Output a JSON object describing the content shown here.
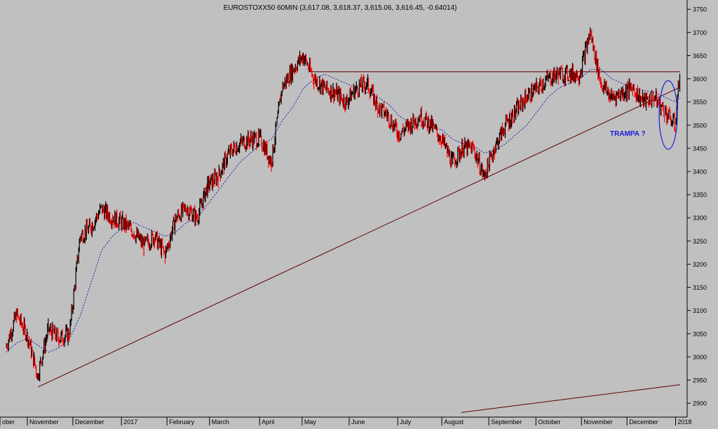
{
  "colors": {
    "background": "#c0c0c0",
    "up_bar": "#000000",
    "down_bar": "#ff0000",
    "moving_average": "#1a1aa6",
    "trendline": "#5a0000",
    "annotation": "#1b1be0"
  },
  "chart_data": {
    "type": "line",
    "title": "EUROSTOXX50 60MIN (3,617.08, 3,618.37, 3,615.06, 3,616.45, -0.64014)",
    "xlabel": "",
    "ylabel": "",
    "ylim": [
      2870,
      3770
    ],
    "grid": false,
    "y_axis_position": "right",
    "y_ticks": [
      2900,
      2950,
      3000,
      3050,
      3100,
      3150,
      3200,
      3250,
      3300,
      3350,
      3400,
      3450,
      3500,
      3550,
      3600,
      3650,
      3700,
      3750
    ],
    "x_tick_labels": [
      "ober",
      "November",
      "December",
      "2017",
      "February",
      "March",
      "April",
      "May",
      "June",
      "July",
      "August",
      "September",
      "October",
      "November",
      "December",
      "2018"
    ],
    "x": [
      "2016-10-18",
      "2016-10-25",
      "2016-11-01",
      "2016-11-08",
      "2016-11-15",
      "2016-11-22",
      "2016-11-29",
      "2016-12-06",
      "2016-12-13",
      "2016-12-20",
      "2016-12-27",
      "2017-01-03",
      "2017-01-10",
      "2017-01-17",
      "2017-01-24",
      "2017-01-31",
      "2017-02-07",
      "2017-02-14",
      "2017-02-21",
      "2017-02-28",
      "2017-03-07",
      "2017-03-14",
      "2017-03-21",
      "2017-03-28",
      "2017-04-04",
      "2017-04-11",
      "2017-04-18",
      "2017-04-25",
      "2017-05-02",
      "2017-05-09",
      "2017-05-16",
      "2017-05-23",
      "2017-05-30",
      "2017-06-06",
      "2017-06-13",
      "2017-06-20",
      "2017-06-27",
      "2017-07-04",
      "2017-07-11",
      "2017-07-18",
      "2017-07-25",
      "2017-08-01",
      "2017-08-08",
      "2017-08-15",
      "2017-08-22",
      "2017-08-29",
      "2017-09-05",
      "2017-09-12",
      "2017-09-19",
      "2017-09-26",
      "2017-10-03",
      "2017-10-10",
      "2017-10-17",
      "2017-10-24",
      "2017-10-31",
      "2017-11-07",
      "2017-11-14",
      "2017-11-21",
      "2017-11-28",
      "2017-12-05",
      "2017-12-12",
      "2017-12-19",
      "2017-12-26",
      "2018-01-02",
      "2018-01-05"
    ],
    "series": [
      {
        "values": [
          3020,
          3090,
          3050,
          2960,
          3060,
          3040,
          3050,
          3260,
          3280,
          3320,
          3300,
          3290,
          3270,
          3240,
          3260,
          3220,
          3300,
          3320,
          3300,
          3370,
          3390,
          3440,
          3460,
          3470,
          3470,
          3420,
          3580,
          3620,
          3650,
          3600,
          3580,
          3570,
          3550,
          3580,
          3590,
          3540,
          3520,
          3480,
          3500,
          3520,
          3500,
          3470,
          3420,
          3450,
          3450,
          3390,
          3450,
          3500,
          3530,
          3560,
          3580,
          3600,
          3610,
          3610,
          3610,
          3700,
          3590,
          3560,
          3570,
          3580,
          3550,
          3560,
          3530,
          3500,
          3616
        ]
      },
      {
        "values": [
          3010,
          3030,
          3040,
          3025,
          3010,
          3020,
          3040,
          3090,
          3160,
          3230,
          3260,
          3280,
          3290,
          3280,
          3270,
          3260,
          3270,
          3290,
          3300,
          3330,
          3360,
          3390,
          3420,
          3440,
          3460,
          3470,
          3510,
          3540,
          3580,
          3600,
          3610,
          3600,
          3590,
          3580,
          3570,
          3560,
          3545,
          3520,
          3505,
          3500,
          3495,
          3490,
          3470,
          3460,
          3455,
          3440,
          3445,
          3460,
          3480,
          3500,
          3530,
          3560,
          3580,
          3590,
          3600,
          3620,
          3620,
          3600,
          3590,
          3580,
          3575,
          3570,
          3560,
          3550,
          3560
        ]
      }
    ],
    "support_line": {
      "x": [
        "2016-11-08",
        "2018-01-05"
      ],
      "y": [
        2935,
        3582
      ]
    },
    "support_line_2": {
      "x": [
        "2017-08-14",
        "2018-01-05"
      ],
      "y": [
        2880,
        2940
      ]
    },
    "resistance_line": {
      "x": [
        "2017-05-05",
        "2018-01-05"
      ],
      "y": [
        3615,
        3615
      ]
    },
    "annotations": [
      {
        "text": "TRAMPA ?",
        "x": "2017-12-05",
        "y": 3483
      }
    ]
  }
}
